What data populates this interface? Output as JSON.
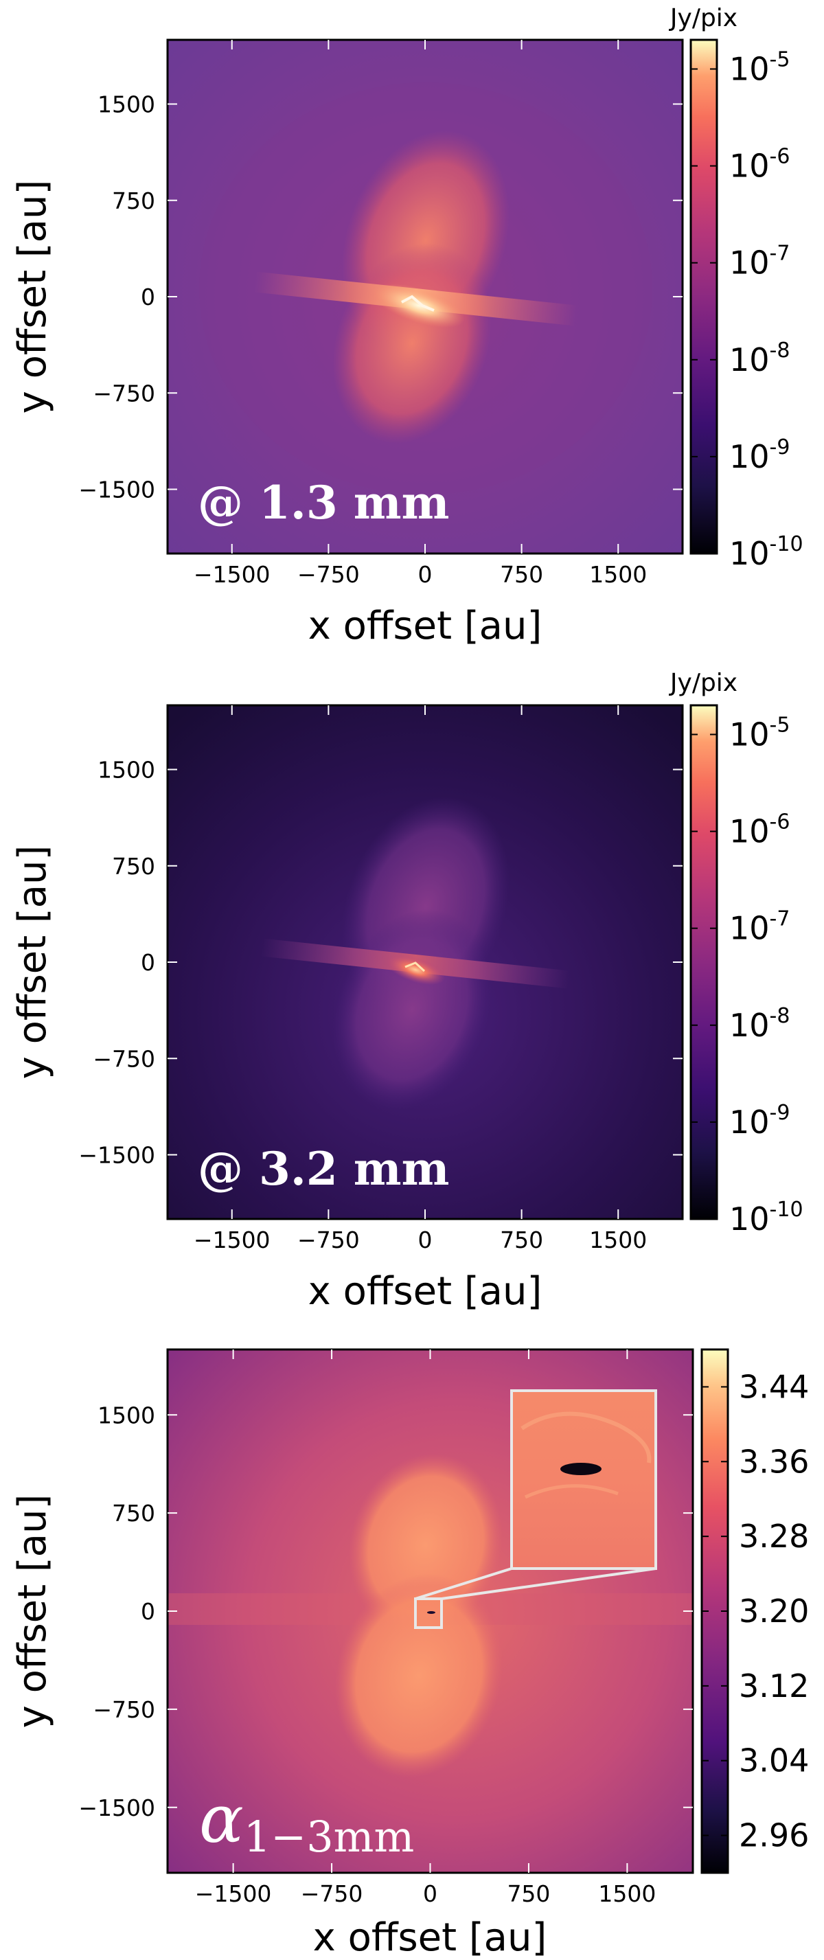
{
  "chart_data": [
    {
      "type": "heatmap",
      "panel_label": "@ 1.3 mm",
      "xlabel": "x offset [au]",
      "ylabel": "y offset [au]",
      "xlim": [
        -2000,
        2000
      ],
      "ylim": [
        -2000,
        2000
      ],
      "x_ticks": [
        -1500,
        -750,
        0,
        750,
        1500
      ],
      "y_ticks": [
        1500,
        750,
        0,
        -750,
        -1500
      ],
      "x_tick_labels": [
        "−1500",
        "−750",
        "0",
        "750",
        "1500"
      ],
      "y_tick_labels": [
        "1500",
        "750",
        "0",
        "−750",
        "−1500"
      ],
      "colorbar": {
        "unit": "Jy/pix",
        "scale": "log",
        "range": [
          1e-10,
          2e-05
        ],
        "ticks": [
          1e-05,
          1e-06,
          1e-07,
          1e-08,
          1e-09,
          1e-10
        ],
        "tick_labels": [
          {
            "base": "10",
            "exp": "-5"
          },
          {
            "base": "10",
            "exp": "-6"
          },
          {
            "base": "10",
            "exp": "-7"
          },
          {
            "base": "10",
            "exp": "-8"
          },
          {
            "base": "10",
            "exp": "-9"
          },
          {
            "base": "10",
            "exp": "-10"
          }
        ]
      },
      "features": {
        "background_level": 3e-08,
        "lobe_level": 1.5e-06,
        "disk_level": 2e-06,
        "peak_level": 1e-05,
        "structure": "bipolar outflow cavity lobes with an edge-on disk lane through the center"
      }
    },
    {
      "type": "heatmap",
      "panel_label": "@ 3.2 mm",
      "xlabel": "x offset [au]",
      "ylabel": "y offset [au]",
      "xlim": [
        -2000,
        2000
      ],
      "ylim": [
        -2000,
        2000
      ],
      "x_ticks": [
        -1500,
        -750,
        0,
        750,
        1500
      ],
      "y_ticks": [
        1500,
        750,
        0,
        -750,
        -1500
      ],
      "x_tick_labels": [
        "−1500",
        "−750",
        "0",
        "750",
        "1500"
      ],
      "y_tick_labels": [
        "1500",
        "750",
        "0",
        "−750",
        "−1500"
      ],
      "colorbar": {
        "unit": "Jy/pix",
        "scale": "log",
        "range": [
          1e-10,
          2e-05
        ],
        "ticks": [
          1e-05,
          1e-06,
          1e-07,
          1e-08,
          1e-09,
          1e-10
        ],
        "tick_labels": [
          {
            "base": "10",
            "exp": "-5"
          },
          {
            "base": "10",
            "exp": "-6"
          },
          {
            "base": "10",
            "exp": "-7"
          },
          {
            "base": "10",
            "exp": "-8"
          },
          {
            "base": "10",
            "exp": "-9"
          },
          {
            "base": "10",
            "exp": "-10"
          }
        ]
      },
      "features": {
        "background_level": 1e-09,
        "lobe_level": 3e-08,
        "disk_level": 8e-08,
        "peak_level": 2e-06,
        "structure": "fainter version of the bipolar lobes and disk lane"
      }
    },
    {
      "type": "heatmap",
      "panel_label_symbol": "α",
      "panel_label_subscript": "1−3mm",
      "xlabel": "x offset [au]",
      "ylabel": "y offset [au]",
      "xlim": [
        -2000,
        2000
      ],
      "ylim": [
        -2000,
        2000
      ],
      "x_ticks": [
        -1500,
        -750,
        0,
        750,
        1500
      ],
      "y_ticks": [
        1500,
        750,
        0,
        -750,
        -1500
      ],
      "x_tick_labels": [
        "−1500",
        "−750",
        "0",
        "750",
        "1500"
      ],
      "y_tick_labels": [
        "1500",
        "750",
        "0",
        "−750",
        "−1500"
      ],
      "colorbar": {
        "scale": "linear",
        "range": [
          2.92,
          3.48
        ],
        "ticks": [
          3.44,
          3.36,
          3.28,
          3.2,
          3.12,
          3.04,
          2.96
        ],
        "tick_labels": [
          "3.44",
          "3.36",
          "3.28",
          "3.20",
          "3.12",
          "3.04",
          "2.96"
        ]
      },
      "features": {
        "background_level": 3.18,
        "lobe_level": 3.34,
        "center_level": 2.95,
        "structure": "spectral index map: higher alpha in outflow lobes, compact low-alpha core at the center, shown magnified in the zoom inset"
      },
      "inset": {
        "zoom_region_x": [
          -100,
          100
        ],
        "zoom_region_y": [
          -100,
          100
        ],
        "content": "zoomed view of the central region showing a compact elongated low-alpha (dark) core"
      }
    }
  ]
}
